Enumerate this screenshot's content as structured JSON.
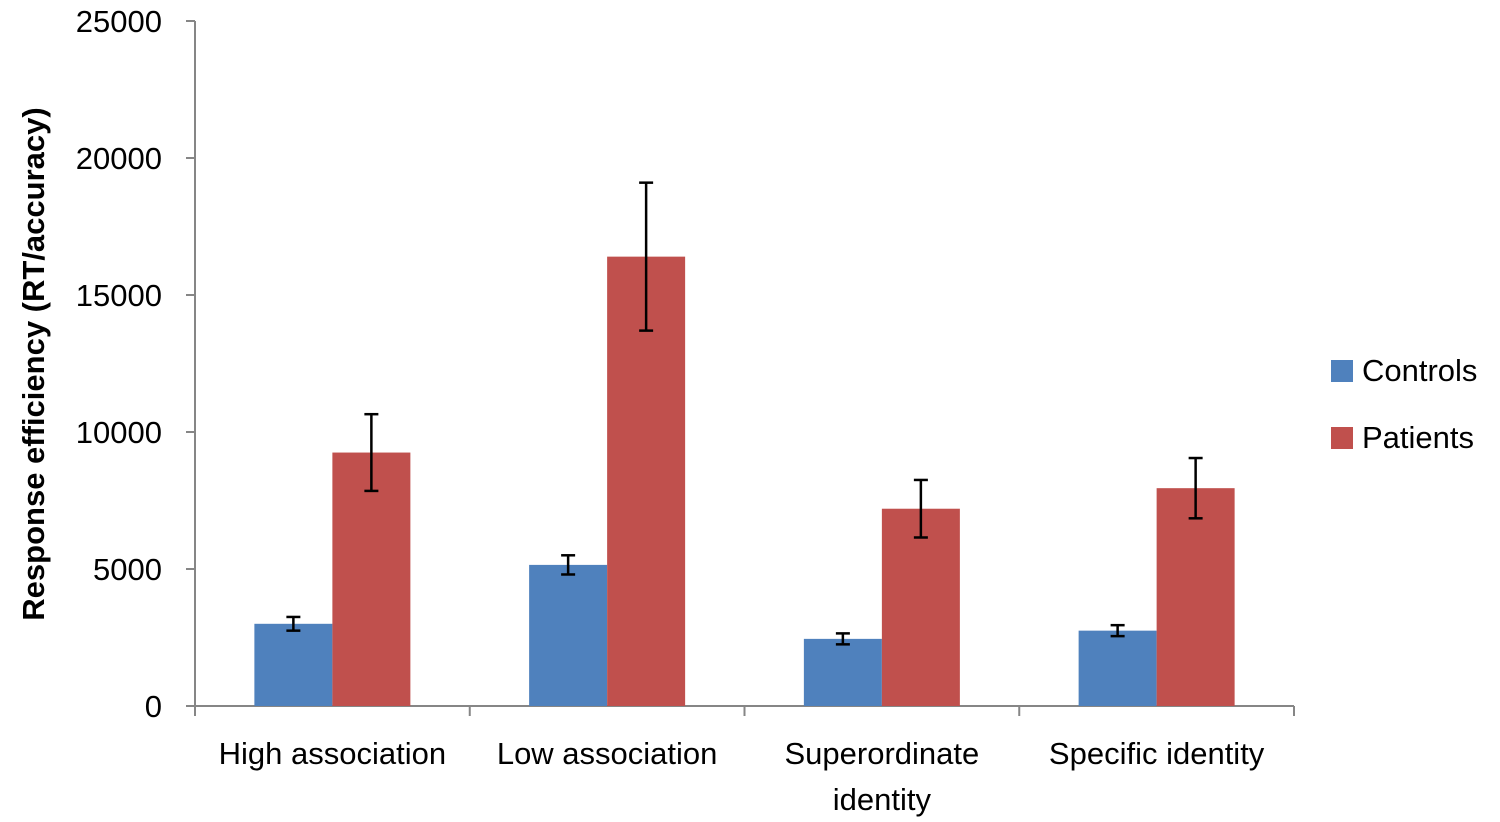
{
  "chart_data": {
    "type": "bar",
    "title": "",
    "xlabel": "",
    "ylabel": "Response efficiency (RT/accuracy)",
    "ylim": [
      0,
      25000
    ],
    "yticks": [
      0,
      5000,
      10000,
      15000,
      20000,
      25000
    ],
    "ytick_labels": [
      "0",
      "5000",
      "10000",
      "15000",
      "20000",
      "25000"
    ],
    "categories": [
      [
        "High association"
      ],
      [
        "Low association"
      ],
      [
        "Superordinate",
        "identity"
      ],
      [
        "Specific identity"
      ]
    ],
    "series": [
      {
        "name": "Controls",
        "color": "#4F81BD",
        "values": [
          3000,
          5150,
          2450,
          2750
        ],
        "error": [
          250,
          350,
          200,
          200
        ]
      },
      {
        "name": "Patients",
        "color": "#C0504D",
        "values": [
          9250,
          16400,
          7200,
          7950
        ],
        "error": [
          1400,
          2700,
          1050,
          1100
        ]
      }
    ],
    "grid": false,
    "legend": "right",
    "error_bars": true
  }
}
